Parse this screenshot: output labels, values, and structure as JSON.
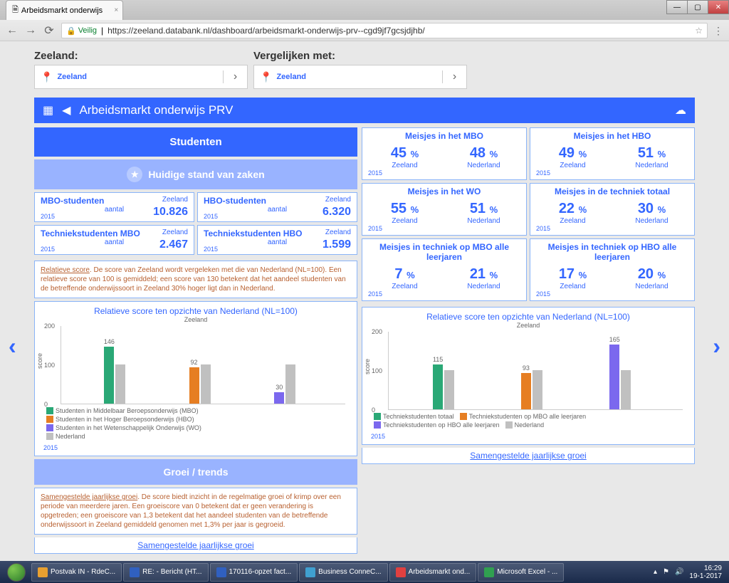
{
  "browser": {
    "tab_title": "Arbeidsmarkt onderwijs",
    "secure_label": "Veilig",
    "url": "https://zeeland.databank.nl/dashboard/arbeidsmarkt-onderwijs-prv--cgd9jf7gcsjdjhb/"
  },
  "selectors": {
    "left_label": "Zeeland:",
    "left_value": "Zeeland",
    "right_label": "Vergelijken met:",
    "right_value": "Zeeland"
  },
  "header": {
    "title": "Arbeidsmarkt onderwijs PRV"
  },
  "left": {
    "banner1": "Studenten",
    "banner2": "Huidige stand van zaken",
    "stats": [
      {
        "title": "MBO-studenten",
        "sub": "aantal",
        "region": "Zeeland",
        "value": "10.826",
        "year": "2015"
      },
      {
        "title": "HBO-studenten",
        "sub": "aantal",
        "region": "Zeeland",
        "value": "6.320",
        "year": "2015"
      },
      {
        "title": "Techniekstudenten MBO",
        "sub": "aantal",
        "region": "Zeeland",
        "value": "2.467",
        "year": "2015"
      },
      {
        "title": "Techniekstudenten HBO",
        "sub": "aantal",
        "region": "Zeeland",
        "value": "1.599",
        "year": "2015"
      }
    ],
    "info": {
      "link": "Relatieve score",
      "text": ". De score van Zeeland wordt vergeleken met die van Nederland (NL=100). Een relatieve score van 100 is gemiddeld; een score van 130 betekent dat het aandeel studenten van de betreffende onderwijssoort in Zeeland 30% hoger ligt dan in Nederland."
    },
    "chart": {
      "title": "Relatieve score ten opzichte van Nederland (NL=100)",
      "sub": "Zeeland",
      "ylabel": "score",
      "ymax": 200,
      "ticks": [
        0,
        100,
        200
      ],
      "groups": [
        {
          "x": 15,
          "zeeland": 146,
          "nederland": 100,
          "color": "#2aa876"
        },
        {
          "x": 45,
          "zeeland": 92,
          "nederland": 100,
          "color": "#e67e22"
        },
        {
          "x": 75,
          "zeeland": 30,
          "nederland": 100,
          "color": "#7b68ee"
        }
      ],
      "nl_color": "#c0c0c0",
      "legend": [
        {
          "color": "#2aa876",
          "label": "Studenten in Middelbaar Beroepsonderwijs (MBO)"
        },
        {
          "color": "#e67e22",
          "label": "Studenten in het Hoger Beroepsonderwijs (HBO)"
        },
        {
          "color": "#7b68ee",
          "label": "Studenten in het Wetenschappelijk Onderwijs (WO)"
        },
        {
          "color": "#c0c0c0",
          "label": "Nederland"
        }
      ],
      "year": "2015"
    },
    "banner3": "Groei / trends",
    "info2": {
      "link": "Samengestelde jaarlijkse groei",
      "text": ". De score biedt inzicht in de regelmatige groei of krimp over een periode van meerdere jaren. Een groeiscore van 0 betekent dat er geen verandering is opgetreden; een groeiscore van 1,3 betekent dat het aandeel studenten van de betreffende onderwijssoort in Zeeland gemiddeld genomen met 1,3% per jaar is gegroeid."
    },
    "bottom_link": "Samengestelde jaarlijkse groei"
  },
  "right": {
    "kpis": [
      [
        {
          "title": "Meisjes in het MBO",
          "v1": "45",
          "r1": "Zeeland",
          "v2": "48",
          "r2": "Nederland",
          "year": "2015"
        },
        {
          "title": "Meisjes in het HBO",
          "v1": "49",
          "r1": "Zeeland",
          "v2": "51",
          "r2": "Nederland",
          "year": "2015"
        }
      ],
      [
        {
          "title": "Meisjes in het WO",
          "v1": "55",
          "r1": "Zeeland",
          "v2": "51",
          "r2": "Nederland",
          "year": "2015"
        },
        {
          "title": "Meisjes in de techniek totaal",
          "v1": "22",
          "r1": "Zeeland",
          "v2": "30",
          "r2": "Nederland",
          "year": "2015"
        }
      ],
      [
        {
          "title": "Meisjes in techniek op MBO alle leerjaren",
          "v1": "7",
          "r1": "Zeeland",
          "v2": "21",
          "r2": "Nederland",
          "year": "2015"
        },
        {
          "title": "Meisjes in techniek op HBO alle leerjaren",
          "v1": "17",
          "r1": "Zeeland",
          "v2": "20",
          "r2": "Nederland",
          "year": "2015"
        }
      ]
    ],
    "chart": {
      "title": "Relatieve score ten opzichte van Nederland (NL=100)",
      "sub": "Zeeland",
      "ylabel": "score",
      "ymax": 200,
      "ticks": [
        0,
        100,
        200
      ],
      "groups": [
        {
          "x": 15,
          "zeeland": 115,
          "nederland": 100,
          "color": "#2aa876"
        },
        {
          "x": 45,
          "zeeland": 93,
          "nederland": 100,
          "color": "#e67e22"
        },
        {
          "x": 75,
          "zeeland": 165,
          "nederland": 100,
          "color": "#7b68ee"
        }
      ],
      "nl_color": "#c0c0c0",
      "legend": [
        {
          "color": "#2aa876",
          "label": "Techniekstudenten totaal"
        },
        {
          "color": "#e67e22",
          "label": "Techniekstudenten op MBO alle leerjaren"
        },
        {
          "color": "#7b68ee",
          "label": "Techniekstudenten op HBO alle leerjaren"
        },
        {
          "color": "#c0c0c0",
          "label": "Nederland"
        }
      ],
      "year": "2015"
    },
    "bottom_link": "Samengestelde jaarlijkse groei"
  },
  "taskbar": {
    "items": [
      "Postvak IN - RdeC...",
      "RE: - Bericht (HT...",
      "170116-opzet fact...",
      "Business ConneC...",
      "Arbeidsmarkt ond...",
      "Microsoft Excel - ..."
    ],
    "time": "16:29",
    "date": "19-1-2017"
  },
  "colors": {
    "primary": "#3366ff",
    "primary_light": "#99b3ff",
    "border": "#8ab4f8"
  }
}
